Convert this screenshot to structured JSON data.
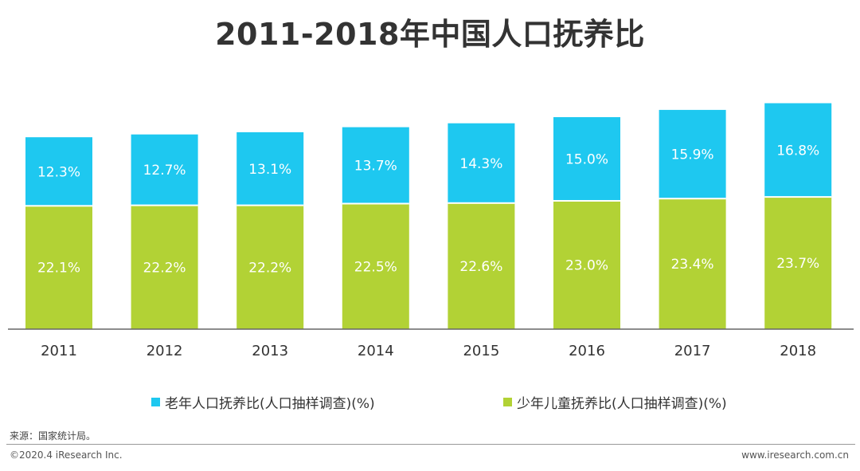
{
  "title": "2011-2018年中国人口抚养比",
  "chart_data": {
    "type": "bar",
    "stacked": true,
    "title": "2011-2018年中国人口抚养比",
    "categories": [
      "2011",
      "2012",
      "2013",
      "2014",
      "2015",
      "2016",
      "2017",
      "2018"
    ],
    "series": [
      {
        "name": "少年儿童抚养比(人口抽样调查)(%)",
        "color": "#b2d235",
        "values": [
          22.1,
          22.2,
          22.2,
          22.5,
          22.6,
          23.0,
          23.4,
          23.7
        ],
        "labels": [
          "22.1%",
          "22.2%",
          "22.2%",
          "22.5%",
          "22.6%",
          "23.0%",
          "23.4%",
          "23.7%"
        ]
      },
      {
        "name": "老年人口抚养比(人口抽样调查)(%)",
        "color": "#1ec8f0",
        "values": [
          12.3,
          12.7,
          13.1,
          13.7,
          14.3,
          15.0,
          15.9,
          16.8
        ],
        "labels": [
          "12.3%",
          "12.7%",
          "13.1%",
          "13.7%",
          "14.3%",
          "15.0%",
          "15.9%",
          "16.8%"
        ]
      }
    ],
    "ylim": [
      0,
      42
    ],
    "grid": false,
    "legend_position": "bottom"
  },
  "legend": {
    "old_label": "老年人口抚养比(人口抽样调查)(%)",
    "young_label": "少年儿童抚养比(人口抽样调查)(%)"
  },
  "footer": {
    "source": "来源：国家统计局。",
    "copyright": "©2020.4 iResearch Inc.",
    "website": "www.iresearch.com.cn"
  },
  "colors": {
    "old": "#1ec8f0",
    "young": "#b2d235",
    "axis": "#666666"
  }
}
